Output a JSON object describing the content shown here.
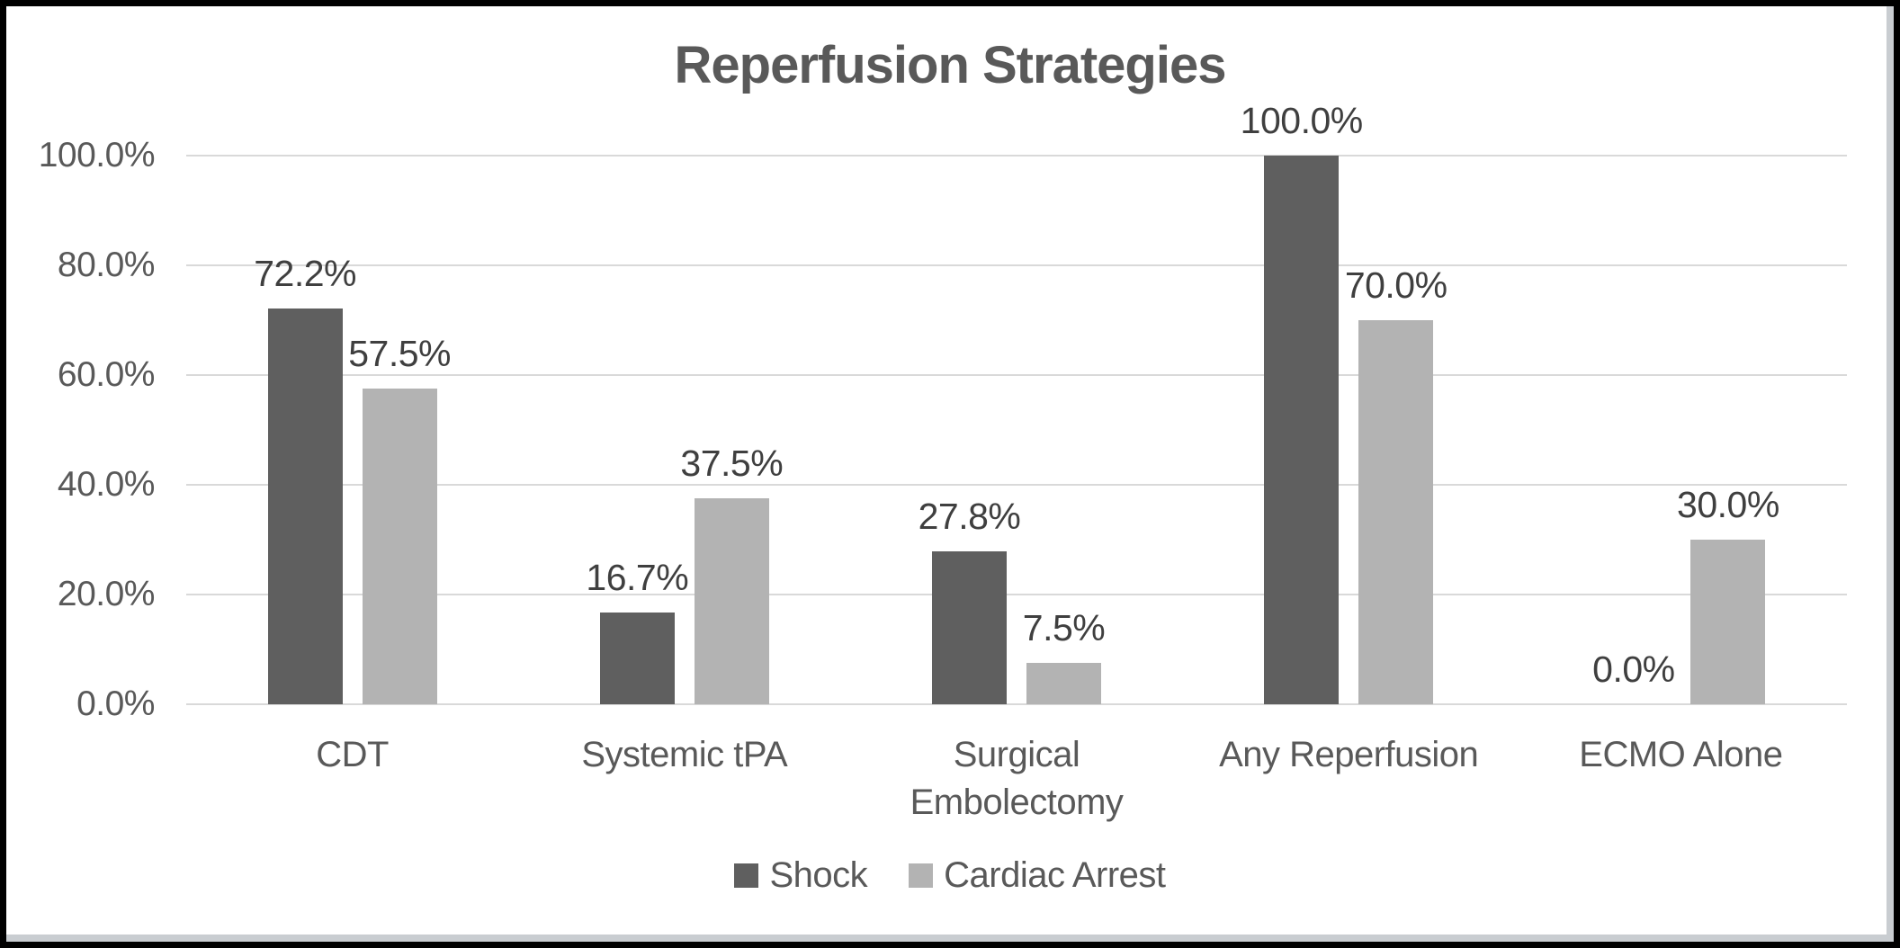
{
  "chart_data": {
    "type": "bar",
    "title": "Reperfusion Strategies",
    "categories": [
      "CDT",
      "Systemic tPA",
      "Surgical Embolectomy",
      "Any Reperfusion",
      "ECMO Alone"
    ],
    "series": [
      {
        "name": "Shock",
        "color": "#5f5f5f",
        "values": [
          72.2,
          16.7,
          27.8,
          100.0,
          0.0
        ],
        "labels": [
          "72.2%",
          "16.7%",
          "27.8%",
          "100.0%",
          "0.0%"
        ]
      },
      {
        "name": "Cardiac Arrest",
        "color": "#b3b3b3",
        "values": [
          57.5,
          37.5,
          7.5,
          70.0,
          30.0
        ],
        "labels": [
          "57.5%",
          "37.5%",
          "7.5%",
          "70.0%",
          "30.0%"
        ]
      }
    ],
    "y_axis": {
      "ticks": [
        "100.0%",
        "80.0%",
        "60.0%",
        "40.0%",
        "20.0%",
        "0.0%"
      ],
      "min": 0,
      "max": 100,
      "step": 20
    },
    "grid": true,
    "legend_position": "bottom"
  },
  "colors": {
    "series_dark": "#5f5f5f",
    "series_light": "#b3b3b3",
    "gridline": "#d9d9d9",
    "title_text": "#595959",
    "axis_text": "#595959",
    "data_label_text": "#3f3f3f",
    "frame_border": "#000000",
    "inner_shadow": "#c9cdd1",
    "background": "#ffffff"
  }
}
